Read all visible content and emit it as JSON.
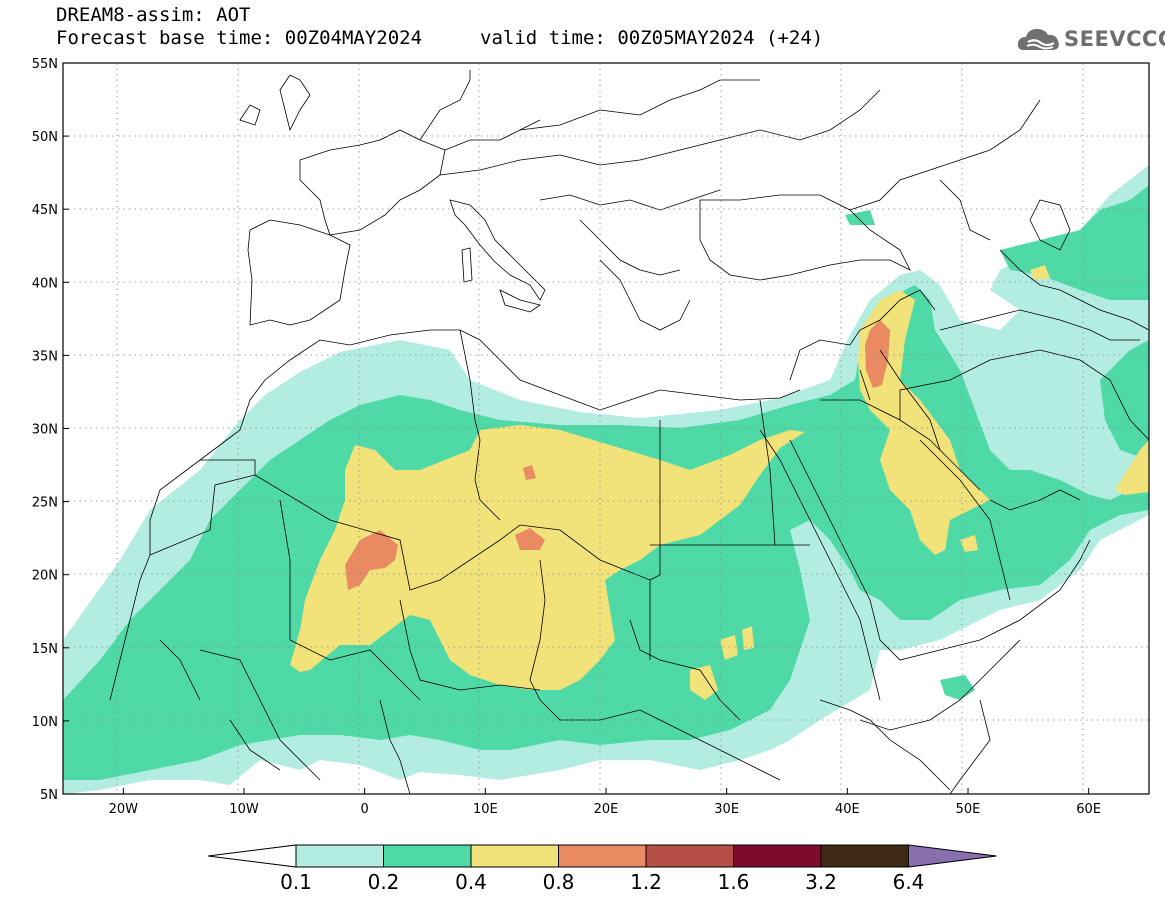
{
  "header": {
    "line1": "DREAM8-assim: AOT",
    "base_time": "Forecast base time: 00Z04MAY2024",
    "valid_time": "valid time: 00Z05MAY2024 (+24)"
  },
  "logo": {
    "text": "SEEVCCC",
    "icon": "cloud-icon"
  },
  "map": {
    "lon_range": [
      -25,
      65
    ],
    "lat_range": [
      5,
      55
    ],
    "lat_labels": [
      "55N",
      "50N",
      "45N",
      "40N",
      "35N",
      "30N",
      "25N",
      "20N",
      "15N",
      "10N",
      "5N"
    ],
    "lon_labels": [
      "20W",
      "10W",
      "0",
      "10E",
      "20E",
      "30E",
      "40E",
      "50E",
      "60E"
    ],
    "gridlines": "dotted"
  },
  "colorbar": {
    "labels": [
      "0.1",
      "0.2",
      "0.4",
      "0.8",
      "1.2",
      "1.6",
      "3.2",
      "6.4"
    ],
    "colors": [
      "#b3ede1",
      "#4fd9a7",
      "#f2e27a",
      "#e98a62",
      "#b54f46",
      "#7e0b2e",
      "#3e2a15",
      "#8a6fae"
    ]
  }
}
